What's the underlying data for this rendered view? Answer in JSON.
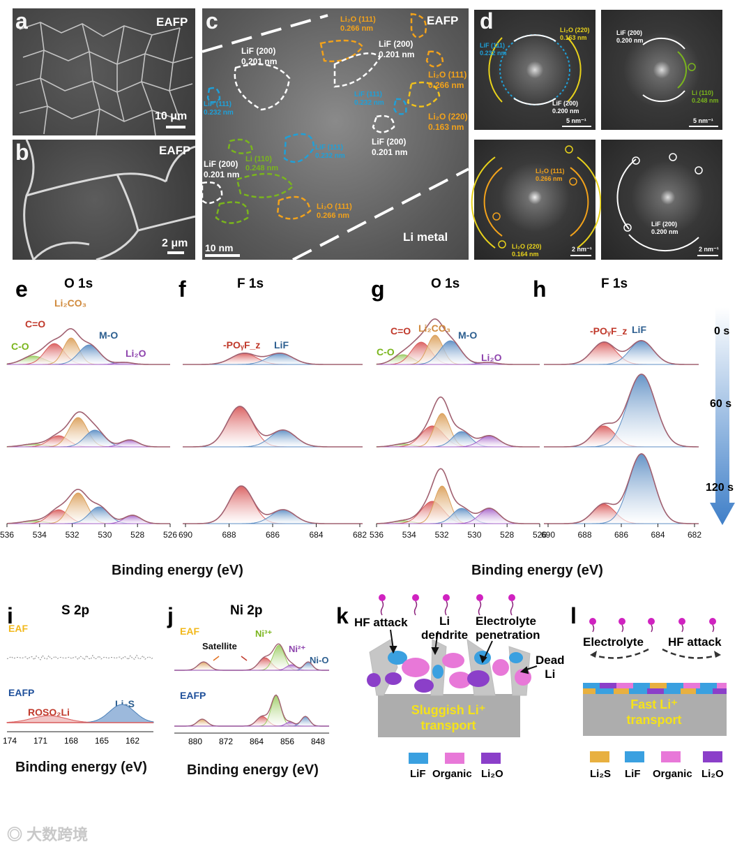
{
  "panels": {
    "a": {
      "letter": "a",
      "tag": "EAFP",
      "scale": "10 μm"
    },
    "b": {
      "letter": "b",
      "tag": "EAFP",
      "scale": "2 μm"
    },
    "c": {
      "letter": "c",
      "tag": "EAFP",
      "scale": "10 nm",
      "region": "Li metal",
      "annotations": [
        {
          "text": "Li₂O (111)\n0.266 nm",
          "color": "#f2a21b"
        },
        {
          "text": "LiF (200)\n0.201 nm",
          "color": "#ffffff"
        },
        {
          "text": "LiF (200)\n0.201 nm",
          "color": "#ffffff"
        },
        {
          "text": "LiF (111)\n0.232 nm",
          "color": "#1fa0d8"
        },
        {
          "text": "Li₂O (111)\n0.266 nm",
          "color": "#f2a21b"
        },
        {
          "text": "LiF (111)\n0.232 nm",
          "color": "#1fa0d8"
        },
        {
          "text": "Li₂O (220)\n0.163 nm",
          "color": "#f2a21b"
        },
        {
          "text": "LiF (200)\n0.201 nm",
          "color": "#ffffff"
        },
        {
          "text": "LiF (111)\n0.232 nm",
          "color": "#1fa0d8"
        },
        {
          "text": "Li (110)\n0.248 nm",
          "color": "#7ab51d"
        },
        {
          "text": "LiF (200)\n0.201 nm",
          "color": "#ffffff"
        },
        {
          "text": "Li₂O (111)\n0.266 nm",
          "color": "#f2a21b"
        }
      ]
    },
    "d": {
      "letter": "d",
      "fft": [
        {
          "labels": [
            {
              "t": "LiF (111)\n0.232 nm",
              "c": "#1fa0d8"
            },
            {
              "t": "Li₂O (220)\n0.163 nm",
              "c": "#e8d21b"
            },
            {
              "t": "LiF (200)\n0.200 nm",
              "c": "#ffffff"
            }
          ],
          "scale": "5 nm⁻¹"
        },
        {
          "labels": [
            {
              "t": "LiF (200)\n0.200 nm",
              "c": "#ffffff"
            },
            {
              "t": "Li (110)\n0.248 nm",
              "c": "#7ab51d"
            }
          ],
          "scale": "5 nm⁻¹"
        },
        {
          "labels": [
            {
              "t": "Li₂O (111)\n0.266 nm",
              "c": "#f2a21b"
            },
            {
              "t": "Li₂O (220)\n0.164 nm",
              "c": "#e8d21b"
            }
          ],
          "scale": "2 nm⁻¹"
        },
        {
          "labels": [
            {
              "t": "LiF (200)\n0.200 nm",
              "c": "#ffffff"
            }
          ],
          "scale": "2 nm⁻¹"
        }
      ]
    }
  },
  "xps": {
    "e": {
      "letter": "e",
      "title": "O 1s",
      "ticks": [
        "536",
        "534",
        "532",
        "530",
        "528",
        "526"
      ],
      "labels": {
        "co": "C-O",
        "c_eq_o": "C=O",
        "li2co3": "Li₂CO₃",
        "mo": "M-O",
        "li2o": "Li₂O"
      }
    },
    "f": {
      "letter": "f",
      "title": "F 1s",
      "ticks": [
        "690",
        "688",
        "686",
        "684",
        "682"
      ],
      "labels": {
        "poyfz": "-POᵧF_z",
        "lif": "LiF"
      }
    },
    "g": {
      "letter": "g",
      "title": "O 1s",
      "ticks": [
        "536",
        "534",
        "532",
        "530",
        "528",
        "526"
      ],
      "labels": {
        "co": "C-O",
        "c_eq_o": "C=O",
        "li2co3": "Li₂CO₃",
        "mo": "M-O",
        "li2o": "Li₂O"
      }
    },
    "h": {
      "letter": "h",
      "title": "F 1s",
      "ticks": [
        "690",
        "688",
        "686",
        "684",
        "682"
      ],
      "labels": {
        "poyfz": "-POᵧF_z",
        "lif": "LiF"
      }
    },
    "times": [
      "0 s",
      "60 s",
      "120 s"
    ],
    "xlabel": "Binding energy (eV)"
  },
  "i": {
    "letter": "i",
    "title": "S 2p",
    "eaf": "EAF",
    "eafp": "EAFP",
    "rosoli": "ROSO₂Li",
    "li2s": "Li₂S",
    "ticks": [
      "174",
      "171",
      "168",
      "165",
      "162"
    ],
    "xlabel": "Binding energy (eV)"
  },
  "j": {
    "letter": "j",
    "title": "Ni 2p",
    "eaf": "EAF",
    "eafp": "EAFP",
    "satellite": "Satellite",
    "ni3": "Ni³⁺",
    "ni2": "Ni²⁺",
    "nio": "Ni-O",
    "ticks": [
      "880",
      "872",
      "864",
      "856",
      "848"
    ],
    "xlabel": "Binding energy  (eV)"
  },
  "k": {
    "letter": "k",
    "hf": "HF attack",
    "dendrite": "Li\ndendrite",
    "penetration": "Electrolyte\npenetration",
    "dead": "Dead\nLi",
    "transport": "Sluggish Li⁺\ntransport",
    "legend": [
      "LiF",
      "Organic",
      "Li₂O"
    ]
  },
  "l": {
    "letter": "l",
    "electrolyte": "Electrolyte",
    "hf": "HF attack",
    "transport": "Fast Li⁺\ntransport",
    "legend": [
      "Li₂S",
      "LiF",
      "Organic",
      "Li₂O"
    ]
  },
  "watermark": "大数跨境",
  "colors": {
    "red": "#c0392b",
    "orange": "#d08a3c",
    "blue": "#4a7fb8",
    "purple": "#8e44ad",
    "green": "#7ab51d",
    "lif": "#3aa0e0",
    "organic": "#e878d8",
    "li2o": "#8b3fc9",
    "li2s": "#e8b040",
    "yellowtext": "#f5e21a"
  }
}
